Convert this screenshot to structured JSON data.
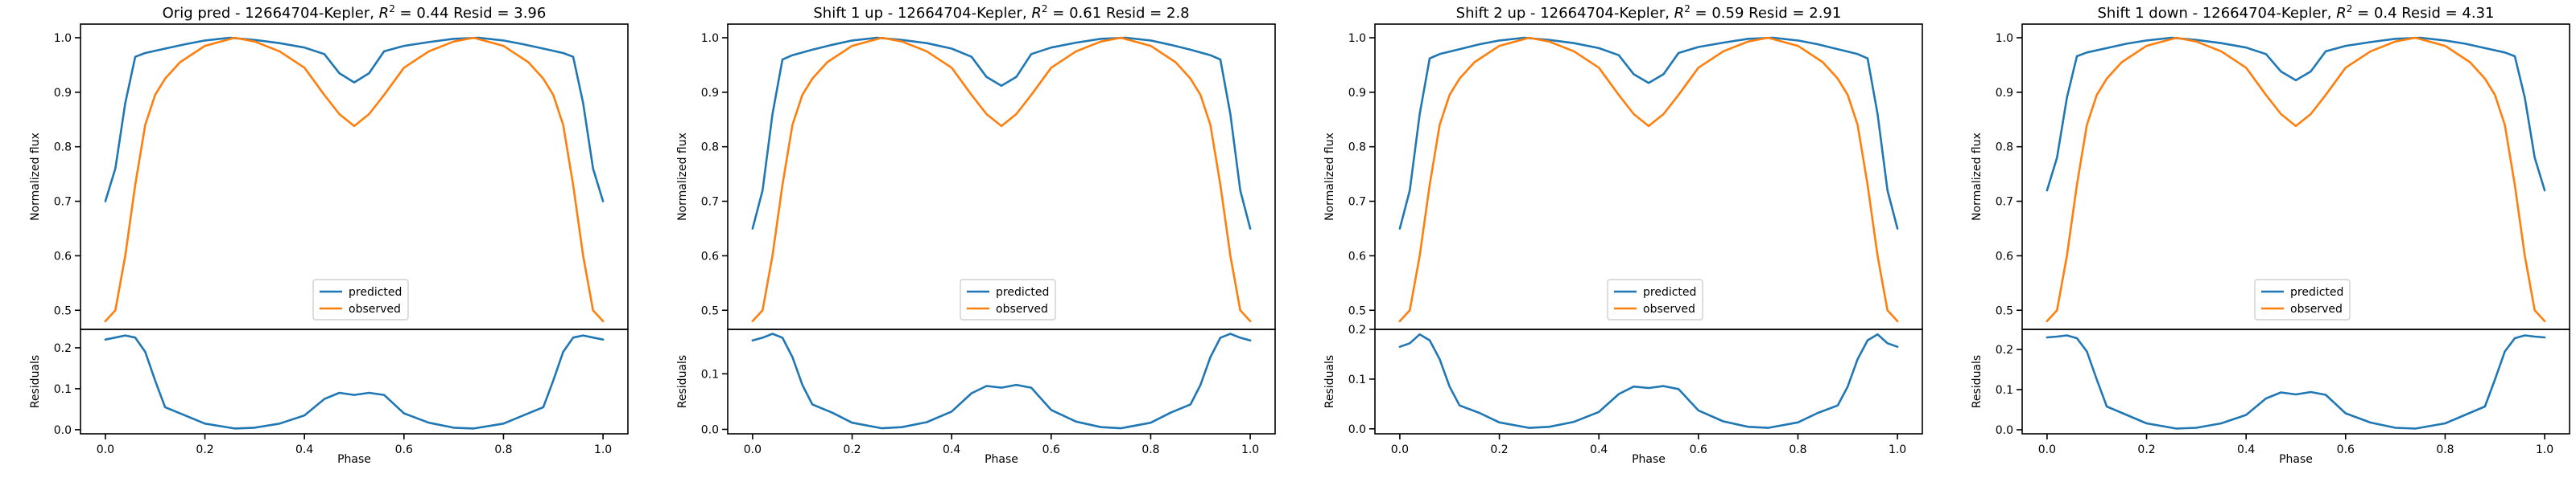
{
  "chart_data": [
    {
      "type": "line",
      "title": "Orig pred - 12664704-Kepler, $R^2 = 0.44$ Resid = 3.96",
      "title_parts": {
        "before": "Orig pred - 12664704-Kepler, ",
        "r2_symbol": "R",
        "r2_exp": "2",
        "after": " = 0.44 Resid = 3.96"
      },
      "xlabel": "Phase",
      "ylabel_top": "Normalized flux",
      "ylabel_bottom": "Residuals",
      "xlim": [
        -0.05,
        1.05
      ],
      "ylim_top": [
        0.465,
        1.025
      ],
      "ylim_bottom": [
        -0.01,
        0.245
      ],
      "x_ticks": [
        "0.0",
        "0.2",
        "0.4",
        "0.6",
        "0.8",
        "1.0"
      ],
      "y_ticks_top": [
        "0.5",
        "0.6",
        "0.7",
        "0.8",
        "0.9",
        "1.0"
      ],
      "y_ticks_bottom": [
        "0.0",
        "0.1",
        "0.2"
      ],
      "legend": {
        "position": "lower center",
        "entries": [
          "predicted",
          "observed"
        ]
      },
      "series": [
        {
          "name": "predicted",
          "color": "#1f77b4",
          "x": [
            0,
            0.02,
            0.04,
            0.06,
            0.08,
            0.12,
            0.16,
            0.2,
            0.25,
            0.3,
            0.35,
            0.4,
            0.44,
            0.47,
            0.5,
            0.53,
            0.56,
            0.6,
            0.65,
            0.7,
            0.75,
            0.8,
            0.84,
            0.88,
            0.92,
            0.94,
            0.96,
            0.98,
            1
          ],
          "y": [
            0.7,
            0.76,
            0.88,
            0.965,
            0.972,
            0.98,
            0.988,
            0.995,
            1.0,
            0.996,
            0.99,
            0.982,
            0.97,
            0.935,
            0.918,
            0.935,
            0.975,
            0.985,
            0.992,
            0.998,
            1.0,
            0.995,
            0.988,
            0.98,
            0.972,
            0.965,
            0.88,
            0.76,
            0.7
          ]
        },
        {
          "name": "observed",
          "color": "#ff7f0e",
          "x": [
            0,
            0.02,
            0.04,
            0.06,
            0.08,
            0.1,
            0.12,
            0.15,
            0.2,
            0.26,
            0.3,
            0.35,
            0.4,
            0.44,
            0.47,
            0.5,
            0.53,
            0.56,
            0.6,
            0.65,
            0.7,
            0.74,
            0.8,
            0.85,
            0.88,
            0.9,
            0.92,
            0.94,
            0.96,
            0.98,
            1
          ],
          "y": [
            0.48,
            0.5,
            0.6,
            0.73,
            0.84,
            0.895,
            0.925,
            0.955,
            0.985,
            1.0,
            0.993,
            0.975,
            0.945,
            0.895,
            0.86,
            0.838,
            0.86,
            0.895,
            0.945,
            0.975,
            0.993,
            1.0,
            0.985,
            0.955,
            0.925,
            0.895,
            0.84,
            0.73,
            0.6,
            0.5,
            0.48
          ]
        },
        {
          "name": "residuals",
          "color": "#1f77b4",
          "panel": "bottom",
          "x": [
            0,
            0.02,
            0.04,
            0.06,
            0.08,
            0.1,
            0.12,
            0.16,
            0.2,
            0.26,
            0.3,
            0.35,
            0.4,
            0.44,
            0.47,
            0.5,
            0.53,
            0.56,
            0.6,
            0.65,
            0.7,
            0.74,
            0.8,
            0.84,
            0.88,
            0.9,
            0.92,
            0.94,
            0.96,
            0.98,
            1
          ],
          "y": [
            0.22,
            0.225,
            0.23,
            0.225,
            0.19,
            0.12,
            0.055,
            0.035,
            0.015,
            0.003,
            0.005,
            0.015,
            0.035,
            0.075,
            0.09,
            0.085,
            0.09,
            0.085,
            0.04,
            0.017,
            0.005,
            0.003,
            0.015,
            0.035,
            0.055,
            0.12,
            0.19,
            0.225,
            0.23,
            0.225,
            0.22
          ]
        }
      ]
    },
    {
      "type": "line",
      "title": "Shift 1 up - 12664704-Kepler, $R^2 = 0.61$ Resid = 2.8",
      "title_parts": {
        "before": "Shift 1 up - 12664704-Kepler, ",
        "r2_symbol": "R",
        "r2_exp": "2",
        "after": " = 0.61 Resid = 2.8"
      },
      "xlabel": "Phase",
      "ylabel_top": "Normalized flux",
      "ylabel_bottom": "Residuals",
      "xlim": [
        -0.05,
        1.05
      ],
      "ylim_top": [
        0.465,
        1.025
      ],
      "ylim_bottom": [
        -0.008,
        0.18
      ],
      "x_ticks": [
        "0.0",
        "0.2",
        "0.4",
        "0.6",
        "0.8",
        "1.0"
      ],
      "y_ticks_top": [
        "0.5",
        "0.6",
        "0.7",
        "0.8",
        "0.9",
        "1.0"
      ],
      "y_ticks_bottom": [
        "0.0",
        "0.1"
      ],
      "legend": {
        "position": "lower center",
        "entries": [
          "predicted",
          "observed"
        ]
      },
      "series": [
        {
          "name": "predicted",
          "color": "#1f77b4",
          "x": [
            0,
            0.02,
            0.04,
            0.06,
            0.08,
            0.12,
            0.16,
            0.2,
            0.25,
            0.3,
            0.35,
            0.4,
            0.44,
            0.47,
            0.5,
            0.53,
            0.56,
            0.6,
            0.65,
            0.7,
            0.75,
            0.8,
            0.84,
            0.88,
            0.92,
            0.94,
            0.96,
            0.98,
            1
          ],
          "y": [
            0.65,
            0.72,
            0.86,
            0.96,
            0.968,
            0.978,
            0.987,
            0.995,
            1.0,
            0.996,
            0.99,
            0.98,
            0.965,
            0.928,
            0.912,
            0.928,
            0.97,
            0.982,
            0.991,
            0.998,
            1.0,
            0.995,
            0.987,
            0.978,
            0.968,
            0.96,
            0.86,
            0.72,
            0.65
          ]
        },
        {
          "name": "observed",
          "color": "#ff7f0e",
          "x": [
            0,
            0.02,
            0.04,
            0.06,
            0.08,
            0.1,
            0.12,
            0.15,
            0.2,
            0.26,
            0.3,
            0.35,
            0.4,
            0.44,
            0.47,
            0.5,
            0.53,
            0.56,
            0.6,
            0.65,
            0.7,
            0.74,
            0.8,
            0.85,
            0.88,
            0.9,
            0.92,
            0.94,
            0.96,
            0.98,
            1
          ],
          "y": [
            0.48,
            0.5,
            0.6,
            0.73,
            0.84,
            0.895,
            0.925,
            0.955,
            0.985,
            1.0,
            0.993,
            0.975,
            0.945,
            0.895,
            0.86,
            0.838,
            0.86,
            0.895,
            0.945,
            0.975,
            0.993,
            1.0,
            0.985,
            0.955,
            0.925,
            0.895,
            0.84,
            0.73,
            0.6,
            0.5,
            0.48
          ]
        },
        {
          "name": "residuals",
          "color": "#1f77b4",
          "panel": "bottom",
          "x": [
            0,
            0.02,
            0.04,
            0.06,
            0.08,
            0.1,
            0.12,
            0.16,
            0.2,
            0.26,
            0.3,
            0.35,
            0.4,
            0.44,
            0.47,
            0.5,
            0.53,
            0.56,
            0.6,
            0.65,
            0.7,
            0.74,
            0.8,
            0.84,
            0.88,
            0.9,
            0.92,
            0.94,
            0.96,
            0.98,
            1
          ],
          "y": [
            0.16,
            0.165,
            0.172,
            0.165,
            0.13,
            0.08,
            0.045,
            0.03,
            0.012,
            0.002,
            0.004,
            0.013,
            0.032,
            0.065,
            0.078,
            0.075,
            0.08,
            0.075,
            0.035,
            0.014,
            0.004,
            0.002,
            0.012,
            0.03,
            0.045,
            0.08,
            0.13,
            0.165,
            0.172,
            0.165,
            0.16
          ]
        }
      ]
    },
    {
      "type": "line",
      "title": "Shift 2 up - 12664704-Kepler, $R^2 = 0.59$ Resid = 2.91",
      "title_parts": {
        "before": "Shift 2 up - 12664704-Kepler, ",
        "r2_symbol": "R",
        "r2_exp": "2",
        "after": " = 0.59 Resid = 2.91"
      },
      "xlabel": "Phase",
      "ylabel_top": "Normalized flux",
      "ylabel_bottom": "Residuals",
      "xlim": [
        -0.05,
        1.05
      ],
      "ylim_top": [
        0.465,
        1.025
      ],
      "ylim_bottom": [
        -0.01,
        0.2
      ],
      "x_ticks": [
        "0.0",
        "0.2",
        "0.4",
        "0.6",
        "0.8",
        "1.0"
      ],
      "y_ticks_top": [
        "0.5",
        "0.6",
        "0.7",
        "0.8",
        "0.9",
        "1.0"
      ],
      "y_ticks_bottom": [
        "0.0",
        "0.1",
        "0.2"
      ],
      "legend": {
        "position": "lower center",
        "entries": [
          "predicted",
          "observed"
        ]
      },
      "series": [
        {
          "name": "predicted",
          "color": "#1f77b4",
          "x": [
            0,
            0.02,
            0.04,
            0.06,
            0.08,
            0.12,
            0.16,
            0.2,
            0.25,
            0.3,
            0.35,
            0.4,
            0.44,
            0.47,
            0.5,
            0.53,
            0.56,
            0.6,
            0.65,
            0.7,
            0.75,
            0.8,
            0.84,
            0.88,
            0.92,
            0.94,
            0.96,
            0.98,
            1
          ],
          "y": [
            0.65,
            0.72,
            0.86,
            0.962,
            0.97,
            0.979,
            0.988,
            0.995,
            1.0,
            0.996,
            0.99,
            0.981,
            0.968,
            0.933,
            0.917,
            0.933,
            0.972,
            0.983,
            0.991,
            0.998,
            1.0,
            0.995,
            0.988,
            0.979,
            0.97,
            0.962,
            0.86,
            0.72,
            0.65
          ]
        },
        {
          "name": "observed",
          "color": "#ff7f0e",
          "x": [
            0,
            0.02,
            0.04,
            0.06,
            0.08,
            0.1,
            0.12,
            0.15,
            0.2,
            0.26,
            0.3,
            0.35,
            0.4,
            0.44,
            0.47,
            0.5,
            0.53,
            0.56,
            0.6,
            0.65,
            0.7,
            0.74,
            0.8,
            0.85,
            0.88,
            0.9,
            0.92,
            0.94,
            0.96,
            0.98,
            1
          ],
          "y": [
            0.48,
            0.5,
            0.6,
            0.73,
            0.84,
            0.895,
            0.925,
            0.955,
            0.985,
            1.0,
            0.993,
            0.975,
            0.945,
            0.895,
            0.86,
            0.838,
            0.86,
            0.895,
            0.945,
            0.975,
            0.993,
            1.0,
            0.985,
            0.955,
            0.925,
            0.895,
            0.84,
            0.73,
            0.6,
            0.5,
            0.48
          ]
        },
        {
          "name": "residuals",
          "color": "#1f77b4",
          "panel": "bottom",
          "x": [
            0,
            0.02,
            0.04,
            0.06,
            0.08,
            0.1,
            0.12,
            0.16,
            0.2,
            0.26,
            0.3,
            0.35,
            0.4,
            0.44,
            0.47,
            0.5,
            0.53,
            0.56,
            0.6,
            0.65,
            0.7,
            0.74,
            0.8,
            0.84,
            0.88,
            0.9,
            0.92,
            0.94,
            0.96,
            0.98,
            1
          ],
          "y": [
            0.165,
            0.172,
            0.19,
            0.178,
            0.14,
            0.085,
            0.047,
            0.032,
            0.013,
            0.002,
            0.004,
            0.014,
            0.034,
            0.07,
            0.085,
            0.082,
            0.086,
            0.08,
            0.037,
            0.015,
            0.004,
            0.002,
            0.013,
            0.032,
            0.047,
            0.085,
            0.14,
            0.178,
            0.19,
            0.172,
            0.165
          ]
        }
      ]
    },
    {
      "type": "line",
      "title": "Shift 1 down - 12664704-Kepler, $R^2 = 0.4$ Resid = 4.31",
      "title_parts": {
        "before": "Shift 1 down - 12664704-Kepler, ",
        "r2_symbol": "R",
        "r2_exp": "2",
        "after": " = 0.4 Resid = 4.31"
      },
      "xlabel": "Phase",
      "ylabel_top": "Normalized flux",
      "ylabel_bottom": "Residuals",
      "xlim": [
        -0.05,
        1.05
      ],
      "ylim_top": [
        0.465,
        1.025
      ],
      "ylim_bottom": [
        -0.01,
        0.25
      ],
      "x_ticks": [
        "0.0",
        "0.2",
        "0.4",
        "0.6",
        "0.8",
        "1.0"
      ],
      "y_ticks_top": [
        "0.5",
        "0.6",
        "0.7",
        "0.8",
        "0.9",
        "1.0"
      ],
      "y_ticks_bottom": [
        "0.0",
        "0.1",
        "0.2"
      ],
      "legend": {
        "position": "lower center",
        "entries": [
          "predicted",
          "observed"
        ]
      },
      "series": [
        {
          "name": "predicted",
          "color": "#1f77b4",
          "x": [
            0,
            0.02,
            0.04,
            0.06,
            0.08,
            0.12,
            0.16,
            0.2,
            0.25,
            0.3,
            0.35,
            0.4,
            0.44,
            0.47,
            0.5,
            0.53,
            0.56,
            0.6,
            0.65,
            0.7,
            0.75,
            0.8,
            0.84,
            0.88,
            0.92,
            0.94,
            0.96,
            0.98,
            1
          ],
          "y": [
            0.72,
            0.78,
            0.89,
            0.966,
            0.973,
            0.981,
            0.989,
            0.995,
            1.0,
            0.996,
            0.99,
            0.982,
            0.97,
            0.938,
            0.922,
            0.938,
            0.975,
            0.985,
            0.992,
            0.998,
            1.0,
            0.995,
            0.989,
            0.981,
            0.973,
            0.966,
            0.89,
            0.78,
            0.72
          ]
        },
        {
          "name": "observed",
          "color": "#ff7f0e",
          "x": [
            0,
            0.02,
            0.04,
            0.06,
            0.08,
            0.1,
            0.12,
            0.15,
            0.2,
            0.26,
            0.3,
            0.35,
            0.4,
            0.44,
            0.47,
            0.5,
            0.53,
            0.56,
            0.6,
            0.65,
            0.7,
            0.74,
            0.8,
            0.85,
            0.88,
            0.9,
            0.92,
            0.94,
            0.96,
            0.98,
            1
          ],
          "y": [
            0.48,
            0.5,
            0.6,
            0.73,
            0.84,
            0.895,
            0.925,
            0.955,
            0.985,
            1.0,
            0.993,
            0.975,
            0.945,
            0.895,
            0.86,
            0.838,
            0.86,
            0.895,
            0.945,
            0.975,
            0.993,
            1.0,
            0.985,
            0.955,
            0.925,
            0.895,
            0.84,
            0.73,
            0.6,
            0.5,
            0.48
          ]
        },
        {
          "name": "residuals",
          "color": "#1f77b4",
          "panel": "bottom",
          "x": [
            0,
            0.02,
            0.04,
            0.06,
            0.08,
            0.1,
            0.12,
            0.16,
            0.2,
            0.26,
            0.3,
            0.35,
            0.4,
            0.44,
            0.47,
            0.5,
            0.53,
            0.56,
            0.6,
            0.65,
            0.7,
            0.74,
            0.8,
            0.84,
            0.88,
            0.9,
            0.92,
            0.94,
            0.96,
            0.98,
            1
          ],
          "y": [
            0.23,
            0.232,
            0.235,
            0.228,
            0.195,
            0.125,
            0.058,
            0.037,
            0.016,
            0.003,
            0.005,
            0.016,
            0.037,
            0.078,
            0.093,
            0.088,
            0.094,
            0.087,
            0.041,
            0.018,
            0.005,
            0.003,
            0.016,
            0.037,
            0.058,
            0.125,
            0.195,
            0.228,
            0.235,
            0.232,
            0.23
          ]
        }
      ]
    }
  ]
}
